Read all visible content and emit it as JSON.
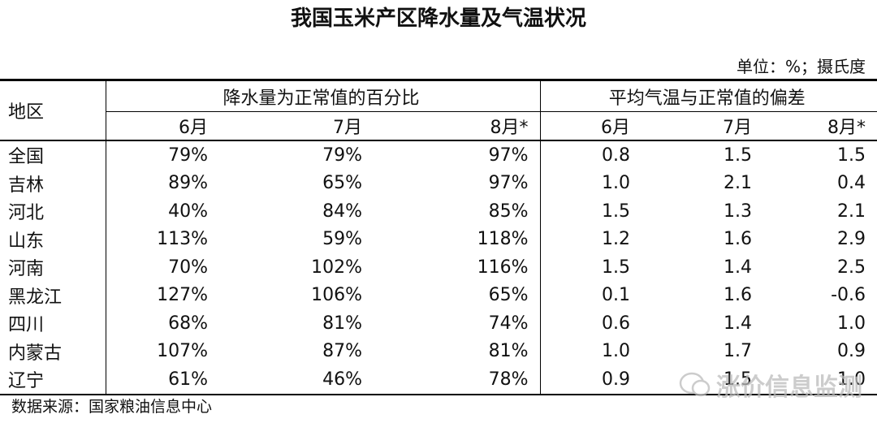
{
  "title": "我国玉米产区降水量及气温状况",
  "unit": "单位：%；摄氏度",
  "table": {
    "header": {
      "region": "地区",
      "groups": [
        "降水量为正常值的百分比",
        "平均气温与正常值的偏差"
      ],
      "months": [
        "6月",
        "7月",
        "8月*",
        "6月",
        "7月",
        "8月*"
      ]
    },
    "rows": [
      [
        "全国",
        "79%",
        "79%",
        "97%",
        "0.8",
        "1.5",
        "1.5"
      ],
      [
        "吉林",
        "89%",
        "65%",
        "97%",
        "1.0",
        "2.1",
        "0.4"
      ],
      [
        "河北",
        "40%",
        "84%",
        "85%",
        "1.5",
        "1.3",
        "2.1"
      ],
      [
        "山东",
        "113%",
        "59%",
        "118%",
        "1.2",
        "1.6",
        "2.9"
      ],
      [
        "河南",
        "70%",
        "102%",
        "116%",
        "1.5",
        "1.4",
        "2.5"
      ],
      [
        "黑龙江",
        "127%",
        "106%",
        "65%",
        "0.1",
        "1.6",
        "-0.6"
      ],
      [
        "四川",
        "68%",
        "81%",
        "74%",
        "0.6",
        "1.4",
        "1.0"
      ],
      [
        "内蒙古",
        "107%",
        "87%",
        "81%",
        "1.0",
        "1.7",
        "0.9"
      ],
      [
        "辽宁",
        "61%",
        "46%",
        "78%",
        "0.9",
        "1.5",
        "1.0"
      ]
    ]
  },
  "source": "数据来源：国家粮油信息中心",
  "watermark": "涨价信息监测"
}
